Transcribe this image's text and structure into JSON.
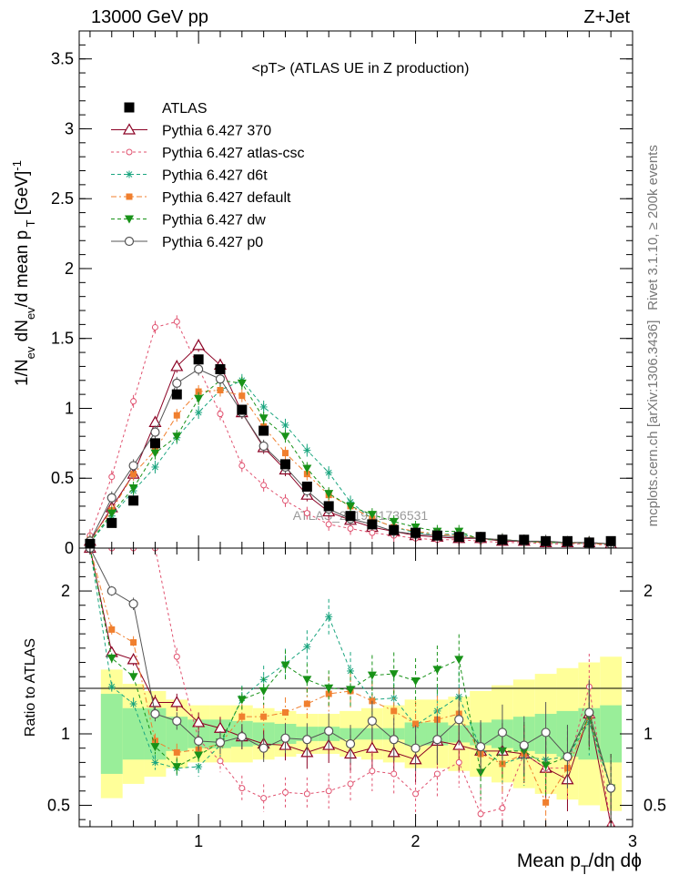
{
  "header": {
    "left": "13000 GeV pp",
    "right": "Z+Jet"
  },
  "side_labels": {
    "rivet": "Rivet 3.1.10, ≥ 200k events",
    "mcplots": "mcplots.cern.ch [arXiv:1306.3436]"
  },
  "chart_data": [
    {
      "type": "line",
      "title": "<pT> (ATLAS UE in Z production)",
      "ylabel": "1/N_ev dN_ev/d mean p_T [GeV]^-1",
      "watermark": "ATLAS_2019_I1736531",
      "xlim": [
        0.45,
        3.0
      ],
      "ylim": [
        0,
        3.7
      ],
      "yticks": [
        0,
        0.5,
        1,
        1.5,
        2,
        2.5,
        3,
        3.5
      ],
      "ytick_labels": [
        "0",
        "0.5",
        "1",
        "1.5",
        "2",
        "2.5",
        "3",
        "3.5"
      ],
      "x": [
        0.5,
        0.6,
        0.7,
        0.8,
        0.9,
        1.0,
        1.1,
        1.2,
        1.3,
        1.4,
        1.5,
        1.6,
        1.7,
        1.8,
        1.9,
        2.0,
        2.1,
        2.2,
        2.3,
        2.4,
        2.5,
        2.6,
        2.7,
        2.8,
        2.9
      ],
      "data": {
        "name": "ATLAS",
        "values": [
          0.03,
          0.18,
          0.34,
          0.75,
          1.1,
          1.35,
          1.28,
          0.99,
          0.84,
          0.6,
          0.44,
          0.3,
          0.23,
          0.17,
          0.13,
          0.11,
          0.09,
          0.08,
          0.08,
          0.06,
          0.06,
          0.05,
          0.05,
          0.04,
          0.05
        ]
      },
      "series": [
        {
          "name": "Pythia 6.427 370",
          "color": "#8b0023",
          "marker": "triangle-open",
          "dash": "solid",
          "values": [
            0.05,
            0.29,
            0.53,
            0.9,
            1.3,
            1.45,
            1.31,
            0.97,
            0.72,
            0.56,
            0.38,
            0.26,
            0.2,
            0.15,
            0.12,
            0.09,
            0.08,
            0.07,
            0.07,
            0.05,
            0.05,
            0.04,
            0.04,
            0.04,
            0.03
          ]
        },
        {
          "name": "Pythia 6.427 atlas-csc",
          "color": "#e0506e",
          "marker": "circle-open-small",
          "dash": "3,3",
          "values": [
            0.09,
            0.51,
            1.05,
            1.58,
            1.62,
            1.29,
            0.96,
            0.59,
            0.45,
            0.34,
            0.25,
            0.17,
            0.14,
            0.11,
            0.09,
            0.07,
            0.06,
            0.06,
            0.05,
            0.04,
            0.04,
            0.03,
            0.03,
            0.03,
            0.02
          ]
        },
        {
          "name": "Pythia 6.427 d6t",
          "color": "#1aa57f",
          "marker": "star",
          "dash": "4,3",
          "values": [
            0.04,
            0.23,
            0.41,
            0.58,
            0.79,
            0.97,
            1.13,
            1.2,
            1.01,
            0.88,
            0.7,
            0.54,
            0.33,
            0.21,
            0.15,
            0.11,
            0.1,
            0.1,
            0.07,
            0.06,
            0.05,
            0.04,
            0.04,
            0.03,
            0.03
          ]
        },
        {
          "name": "Pythia 6.427 default",
          "color": "#f07f2e",
          "marker": "square",
          "dash": "6,3,2,3",
          "values": [
            0.06,
            0.27,
            0.53,
            0.7,
            0.95,
            1.12,
            1.13,
            1.09,
            0.87,
            0.68,
            0.53,
            0.38,
            0.3,
            0.21,
            0.15,
            0.12,
            0.1,
            0.09,
            0.07,
            0.06,
            0.05,
            0.04,
            0.04,
            0.03,
            0.03
          ]
        },
        {
          "name": "Pythia 6.427 dw",
          "color": "#189218",
          "marker": "triangle-down",
          "dash": "4,3",
          "values": [
            0.04,
            0.25,
            0.43,
            0.68,
            0.8,
            1.07,
            1.2,
            1.18,
            0.93,
            0.8,
            0.57,
            0.39,
            0.3,
            0.24,
            0.19,
            0.15,
            0.12,
            0.12,
            0.06,
            0.06,
            0.05,
            0.04,
            0.04,
            0.04,
            0.03
          ]
        },
        {
          "name": "Pythia 6.427 p0",
          "color": "#555555",
          "marker": "circle-open",
          "dash": "solid",
          "values": [
            0.05,
            0.36,
            0.59,
            0.83,
            1.18,
            1.28,
            1.21,
            0.97,
            0.73,
            0.58,
            0.41,
            0.28,
            0.21,
            0.17,
            0.12,
            0.1,
            0.09,
            0.08,
            0.07,
            0.06,
            0.05,
            0.05,
            0.04,
            0.04,
            0.03
          ]
        }
      ]
    },
    {
      "type": "line",
      "ylabel": "Ratio to ATLAS",
      "xlabel": "Mean p_T/dη dφ",
      "xlim": [
        0.45,
        3.0
      ],
      "ylim": [
        0.35,
        2.3
      ],
      "yticks": [
        0.5,
        1,
        2
      ],
      "ytick_labels": [
        "0.5",
        "1",
        "2"
      ],
      "xticks": [
        1,
        2,
        3
      ],
      "xtick_labels": [
        "1",
        "2",
        "3"
      ],
      "band_inner": [
        1.8,
        0.72,
        0.82,
        0.82,
        0.88,
        0.9,
        0.9,
        0.91,
        0.92,
        0.93,
        0.95,
        0.95,
        0.96,
        0.96,
        0.96,
        0.92,
        0.92,
        0.94,
        0.92,
        0.9,
        0.88,
        0.86,
        0.84,
        0.82,
        0.8
      ],
      "band_outer": [
        2.3,
        0.55,
        0.65,
        0.7,
        0.76,
        0.8,
        0.8,
        0.8,
        0.82,
        0.84,
        0.86,
        0.86,
        0.84,
        0.82,
        0.8,
        0.76,
        0.76,
        0.74,
        0.7,
        0.66,
        0.62,
        0.58,
        0.54,
        0.5,
        0.46
      ],
      "series": [
        {
          "name": "Pythia 6.427 370",
          "values": [
            2.3,
            1.57,
            1.52,
            1.22,
            1.22,
            1.08,
            1.04,
            0.98,
            0.93,
            0.92,
            0.87,
            0.92,
            0.86,
            0.9,
            0.87,
            0.82,
            0.95,
            0.92,
            0.88,
            0.88,
            0.86,
            0.76,
            0.68,
            1.14,
            0.36
          ]
        },
        {
          "name": "Pythia 6.427 atlas-csc",
          "values": [
            2.3,
            2.3,
            2.3,
            2.3,
            1.54,
            0.96,
            0.81,
            0.62,
            0.55,
            0.59,
            0.58,
            0.6,
            0.65,
            0.74,
            0.72,
            0.58,
            0.72,
            0.8,
            0.44,
            0.48,
            0.86,
            0.76,
            0.76,
            1.33,
            0.36
          ]
        },
        {
          "name": "Pythia 6.427 d6t",
          "values": [
            2.3,
            1.33,
            1.21,
            0.8,
            0.76,
            0.77,
            0.92,
            1.25,
            1.38,
            1.49,
            1.61,
            1.82,
            1.44,
            1.24,
            1.25,
            1.06,
            1.16,
            1.26,
            0.9,
            0.79,
            0.84,
            0.82,
            0.84,
            1.08,
            0.62
          ]
        },
        {
          "name": "Pythia 6.427 default",
          "values": [
            2.3,
            1.73,
            1.64,
            0.95,
            0.87,
            0.89,
            0.93,
            1.12,
            1.12,
            1.15,
            1.21,
            1.28,
            1.3,
            1.23,
            1.16,
            1.07,
            1.1,
            1.14,
            0.86,
            0.79,
            0.86,
            0.52,
            0.76,
            1.12,
            0.62
          ]
        },
        {
          "name": "Pythia 6.427 dw",
          "values": [
            2.3,
            1.53,
            1.4,
            0.91,
            0.77,
            0.85,
            0.94,
            1.24,
            1.3,
            1.48,
            1.38,
            1.32,
            1.31,
            1.41,
            1.42,
            1.37,
            1.45,
            1.52,
            0.73,
            0.88,
            0.88,
            0.78,
            0.84,
            1.12,
            0.62
          ]
        },
        {
          "name": "Pythia 6.427 p0",
          "values": [
            2.3,
            2.0,
            1.91,
            1.14,
            1.09,
            0.95,
            0.94,
            0.98,
            0.9,
            0.97,
            0.96,
            1.02,
            0.93,
            1.09,
            0.96,
            0.9,
            0.96,
            1.1,
            0.91,
            1.01,
            0.92,
            1.01,
            0.84,
            1.15,
            0.62
          ]
        }
      ]
    }
  ]
}
